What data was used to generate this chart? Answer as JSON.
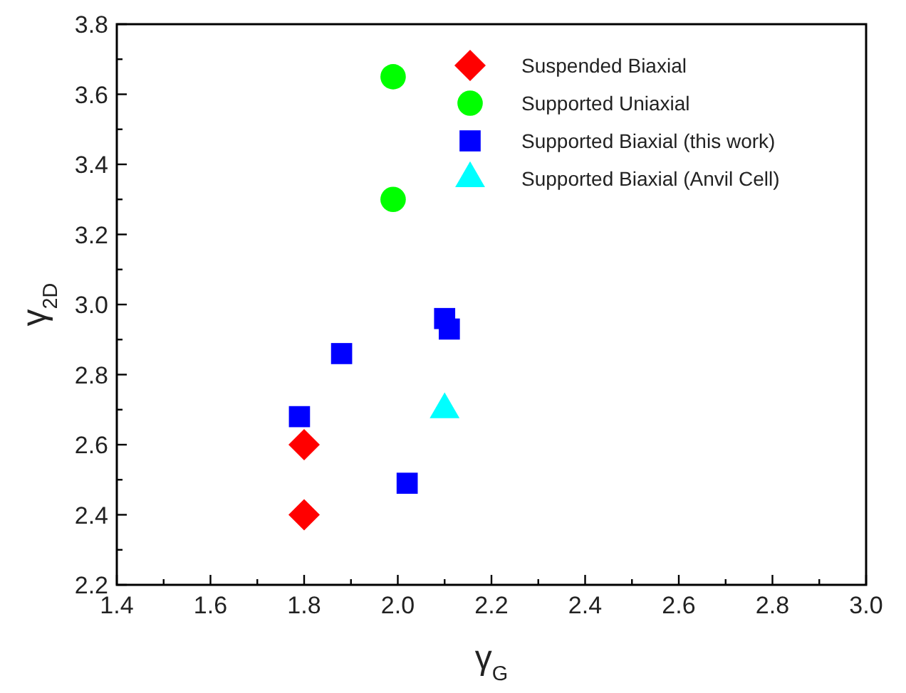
{
  "chart_data": {
    "type": "scatter",
    "xlabel": "γ$_{G}$",
    "ylabel": "γ$_{2D}$",
    "xlim": [
      1.4,
      3.0
    ],
    "ylim": [
      2.2,
      3.8
    ],
    "xticks": [
      1.4,
      {
        "value": 1.5,
        "label": null
      },
      1.6,
      {
        "value": 1.7,
        "label": null
      },
      1.8,
      {
        "value": 1.9,
        "label": null
      },
      {
        "value": 2.0,
        "label": "2.0"
      },
      {
        "value": 2.1,
        "label": null
      },
      2.2,
      {
        "value": 2.3,
        "label": null
      },
      2.4,
      {
        "value": 2.5,
        "label": null
      },
      2.6,
      {
        "value": 2.7,
        "label": null
      },
      2.8,
      {
        "value": 2.9,
        "label": null
      },
      {
        "value": 3.0,
        "label": "3.0"
      }
    ],
    "yticks": [
      2.2,
      {
        "value": 2.3,
        "label": null
      },
      2.4,
      {
        "value": 2.5,
        "label": null
      },
      2.6,
      {
        "value": 2.7,
        "label": null
      },
      2.8,
      {
        "value": 2.9,
        "label": null
      },
      {
        "value": 3.0,
        "label": "3.0"
      },
      {
        "value": 3.1,
        "label": null
      },
      3.2,
      {
        "value": 3.3,
        "label": null
      },
      3.4,
      {
        "value": 3.5,
        "label": null
      },
      3.6,
      {
        "value": 3.7,
        "label": null
      },
      3.8
    ],
    "legend": "top right",
    "grid": false,
    "series": [
      {
        "name": "Suspended Biaxial",
        "color": "#ff0000",
        "marker": "diamond",
        "x": [
          1.8,
          1.8
        ],
        "values": [
          2.6,
          2.4
        ]
      },
      {
        "name": "Supported Uniaxial",
        "color": "#00ff00",
        "marker": "circle",
        "x": [
          1.99,
          1.99
        ],
        "values": [
          3.65,
          3.3
        ]
      },
      {
        "name": "Supported Biaxial (this work)",
        "color": "#0000ff",
        "marker": "square",
        "x": [
          1.79,
          1.88,
          2.1,
          2.11,
          2.02
        ],
        "values": [
          2.68,
          2.86,
          2.96,
          2.93,
          2.49
        ]
      },
      {
        "name": "Supported Biaxial (Anvil Cell)",
        "color": "#00ffff",
        "marker": "triangle",
        "x": [
          2.1
        ],
        "values": [
          2.7
        ]
      }
    ]
  }
}
